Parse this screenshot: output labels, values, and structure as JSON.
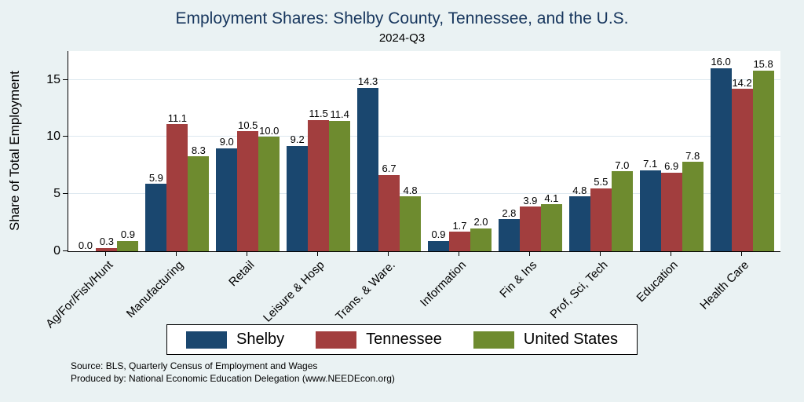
{
  "notes": {
    "line1": "Source: BLS, Quarterly Census of Employment and Wages",
    "line2": "Produced by: National Economic Education Delegation (www.NEEDEcon.org)"
  },
  "colors": {
    "background": "#eaf2f3",
    "plot_background": "#ffffff",
    "title_text": "#17365d",
    "gridline": "#dde8ef",
    "shelby_blue": "#1a476f",
    "tennessee_red": "#a23e3e",
    "us_green": "#6e8b2f"
  },
  "chart_data": {
    "type": "bar",
    "title": "Employment Shares: Shelby County, Tennessee, and the U.S.",
    "subtitle": "2024-Q3",
    "ylabel": "Share of Total Employment",
    "xlabel": "",
    "ylim": [
      0,
      17.5
    ],
    "yticks": [
      0,
      5,
      10,
      15
    ],
    "grid": true,
    "legend_position": "bottom",
    "categories": [
      "Ag/For/Fish/Hunt",
      "Manufacturing",
      "Retail",
      "Leisure & Hosp",
      "Trans. & Ware.",
      "Information",
      "Fin & Ins",
      "Prof, Sci, Tech",
      "Education",
      "Health Care"
    ],
    "series": [
      {
        "name": "Shelby",
        "color": "#1a476f",
        "values": [
          0.0,
          5.9,
          9.0,
          9.2,
          14.3,
          0.9,
          2.8,
          4.8,
          7.1,
          16.0
        ]
      },
      {
        "name": "Tennessee",
        "color": "#a23e3e",
        "values": [
          0.3,
          11.1,
          10.5,
          11.5,
          6.7,
          1.7,
          3.9,
          5.5,
          6.9,
          14.2
        ]
      },
      {
        "name": "United States",
        "color": "#6e8b2f",
        "values": [
          0.9,
          8.3,
          10.0,
          11.4,
          4.8,
          2.0,
          4.1,
          7.0,
          7.8,
          15.8
        ]
      }
    ]
  }
}
